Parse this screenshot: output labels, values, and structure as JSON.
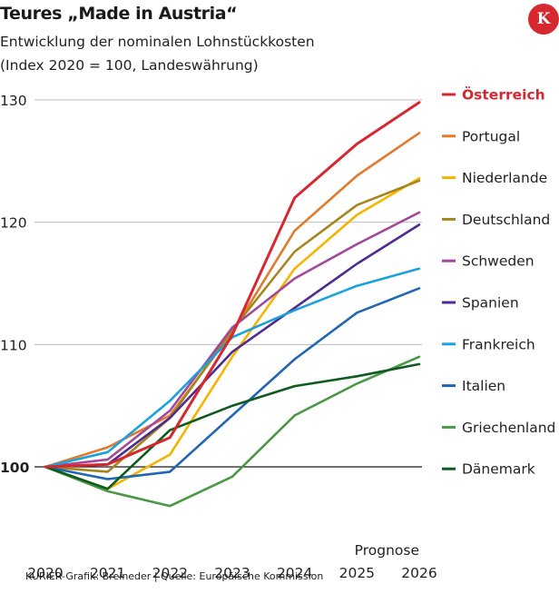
{
  "header": {
    "title": "Teures „Made in Austria“",
    "subtitle_line1": "Entwicklung der nominalen Lohnstückkosten",
    "subtitle_line2": "(Index 2020 = 100, Landeswährung)",
    "logo_letter": "K"
  },
  "footer": {
    "credit": "KURIER-Grafik: Breineder | Quelle: Europäische Kommission"
  },
  "chart_data": {
    "type": "line",
    "title": "Teures „Made in Austria“",
    "subtitle": "Entwicklung der nominalen Lohnstückkosten (Index 2020 = 100, Landeswährung)",
    "xlabel": "",
    "ylabel": "",
    "x": [
      "2020",
      "2021",
      "2022",
      "2023",
      "2024",
      "2025",
      "2026"
    ],
    "ytick_labels": [
      "100",
      "110",
      "120",
      "130"
    ],
    "ylim": [
      96,
      130
    ],
    "baseline": 100,
    "forecast_label": "Prognose",
    "legend_position": "right",
    "series": [
      {
        "name": "Österreich",
        "color": "#d7282f",
        "highlight": true,
        "values": [
          100,
          100.2,
          102.4,
          110.8,
          122.0,
          126.4,
          129.8
        ]
      },
      {
        "name": "Portugal",
        "color": "#e07a2e",
        "values": [
          100,
          101.6,
          104.2,
          111.0,
          119.3,
          123.8,
          127.3
        ]
      },
      {
        "name": "Niederlande",
        "color": "#f5b400",
        "values": [
          100,
          98.2,
          101.0,
          109.0,
          116.2,
          120.6,
          123.6
        ]
      },
      {
        "name": "Deutschland",
        "color": "#a5861c",
        "values": [
          100,
          99.6,
          104.0,
          111.2,
          117.6,
          121.4,
          123.4
        ]
      },
      {
        "name": "Schweden",
        "color": "#a2489b",
        "values": [
          100,
          100.6,
          104.6,
          111.4,
          115.4,
          118.2,
          120.8
        ]
      },
      {
        "name": "Spanien",
        "color": "#4f2b8f",
        "values": [
          100,
          100.2,
          104.0,
          109.4,
          113.0,
          116.6,
          119.8
        ]
      },
      {
        "name": "Frankreich",
        "color": "#1ba1dc",
        "values": [
          100,
          101.2,
          105.4,
          110.6,
          112.8,
          114.8,
          116.2
        ]
      },
      {
        "name": "Italien",
        "color": "#2166b3",
        "values": [
          100,
          99.0,
          99.6,
          104.2,
          108.8,
          112.6,
          114.6
        ]
      },
      {
        "name": "Griechenland",
        "color": "#4a9745",
        "values": [
          100,
          98.0,
          96.8,
          99.2,
          104.2,
          106.8,
          109.0
        ]
      },
      {
        "name": "Dänemark",
        "color": "#0d5b1e",
        "values": [
          100,
          98.2,
          103.0,
          105.0,
          106.6,
          107.4,
          108.4
        ]
      }
    ]
  }
}
